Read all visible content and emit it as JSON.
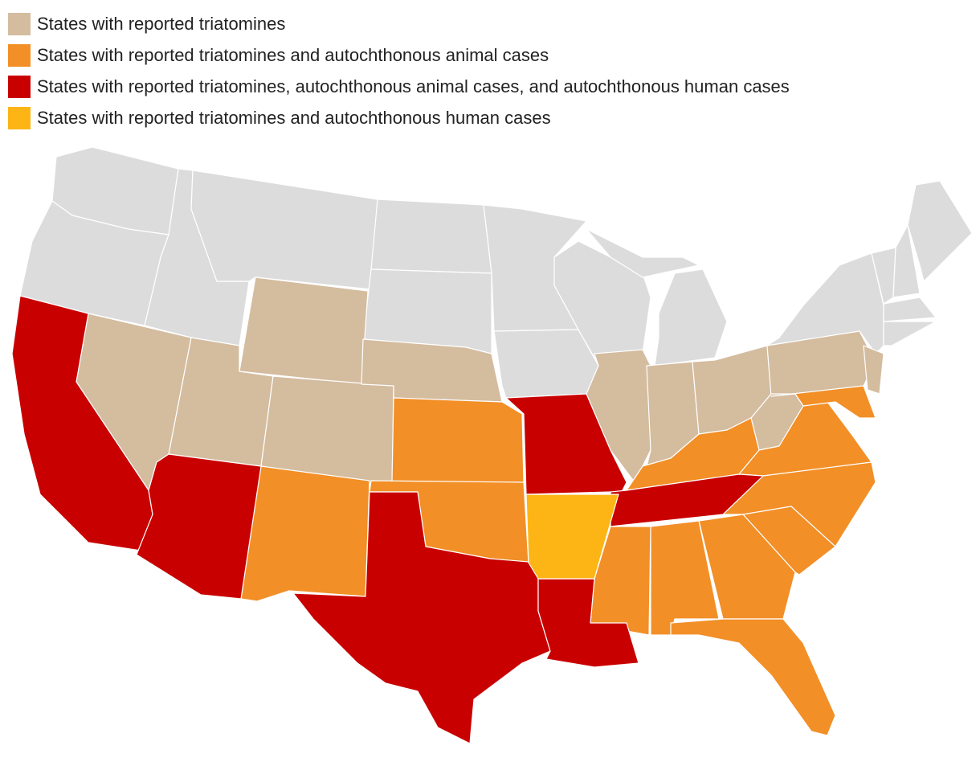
{
  "legend": [
    {
      "label": "States with reported triatomines",
      "color": "#d4bc9f"
    },
    {
      "label": "States with reported triatomines and autochthonous animal cases",
      "color": "#f28f27"
    },
    {
      "label": "States with reported triatomines, autochthonous animal cases, and autochthonous human cases",
      "color": "#c90000"
    },
    {
      "label": "States with reported triatomines and autochthonous human cases",
      "color": "#fdb515"
    }
  ]
}
